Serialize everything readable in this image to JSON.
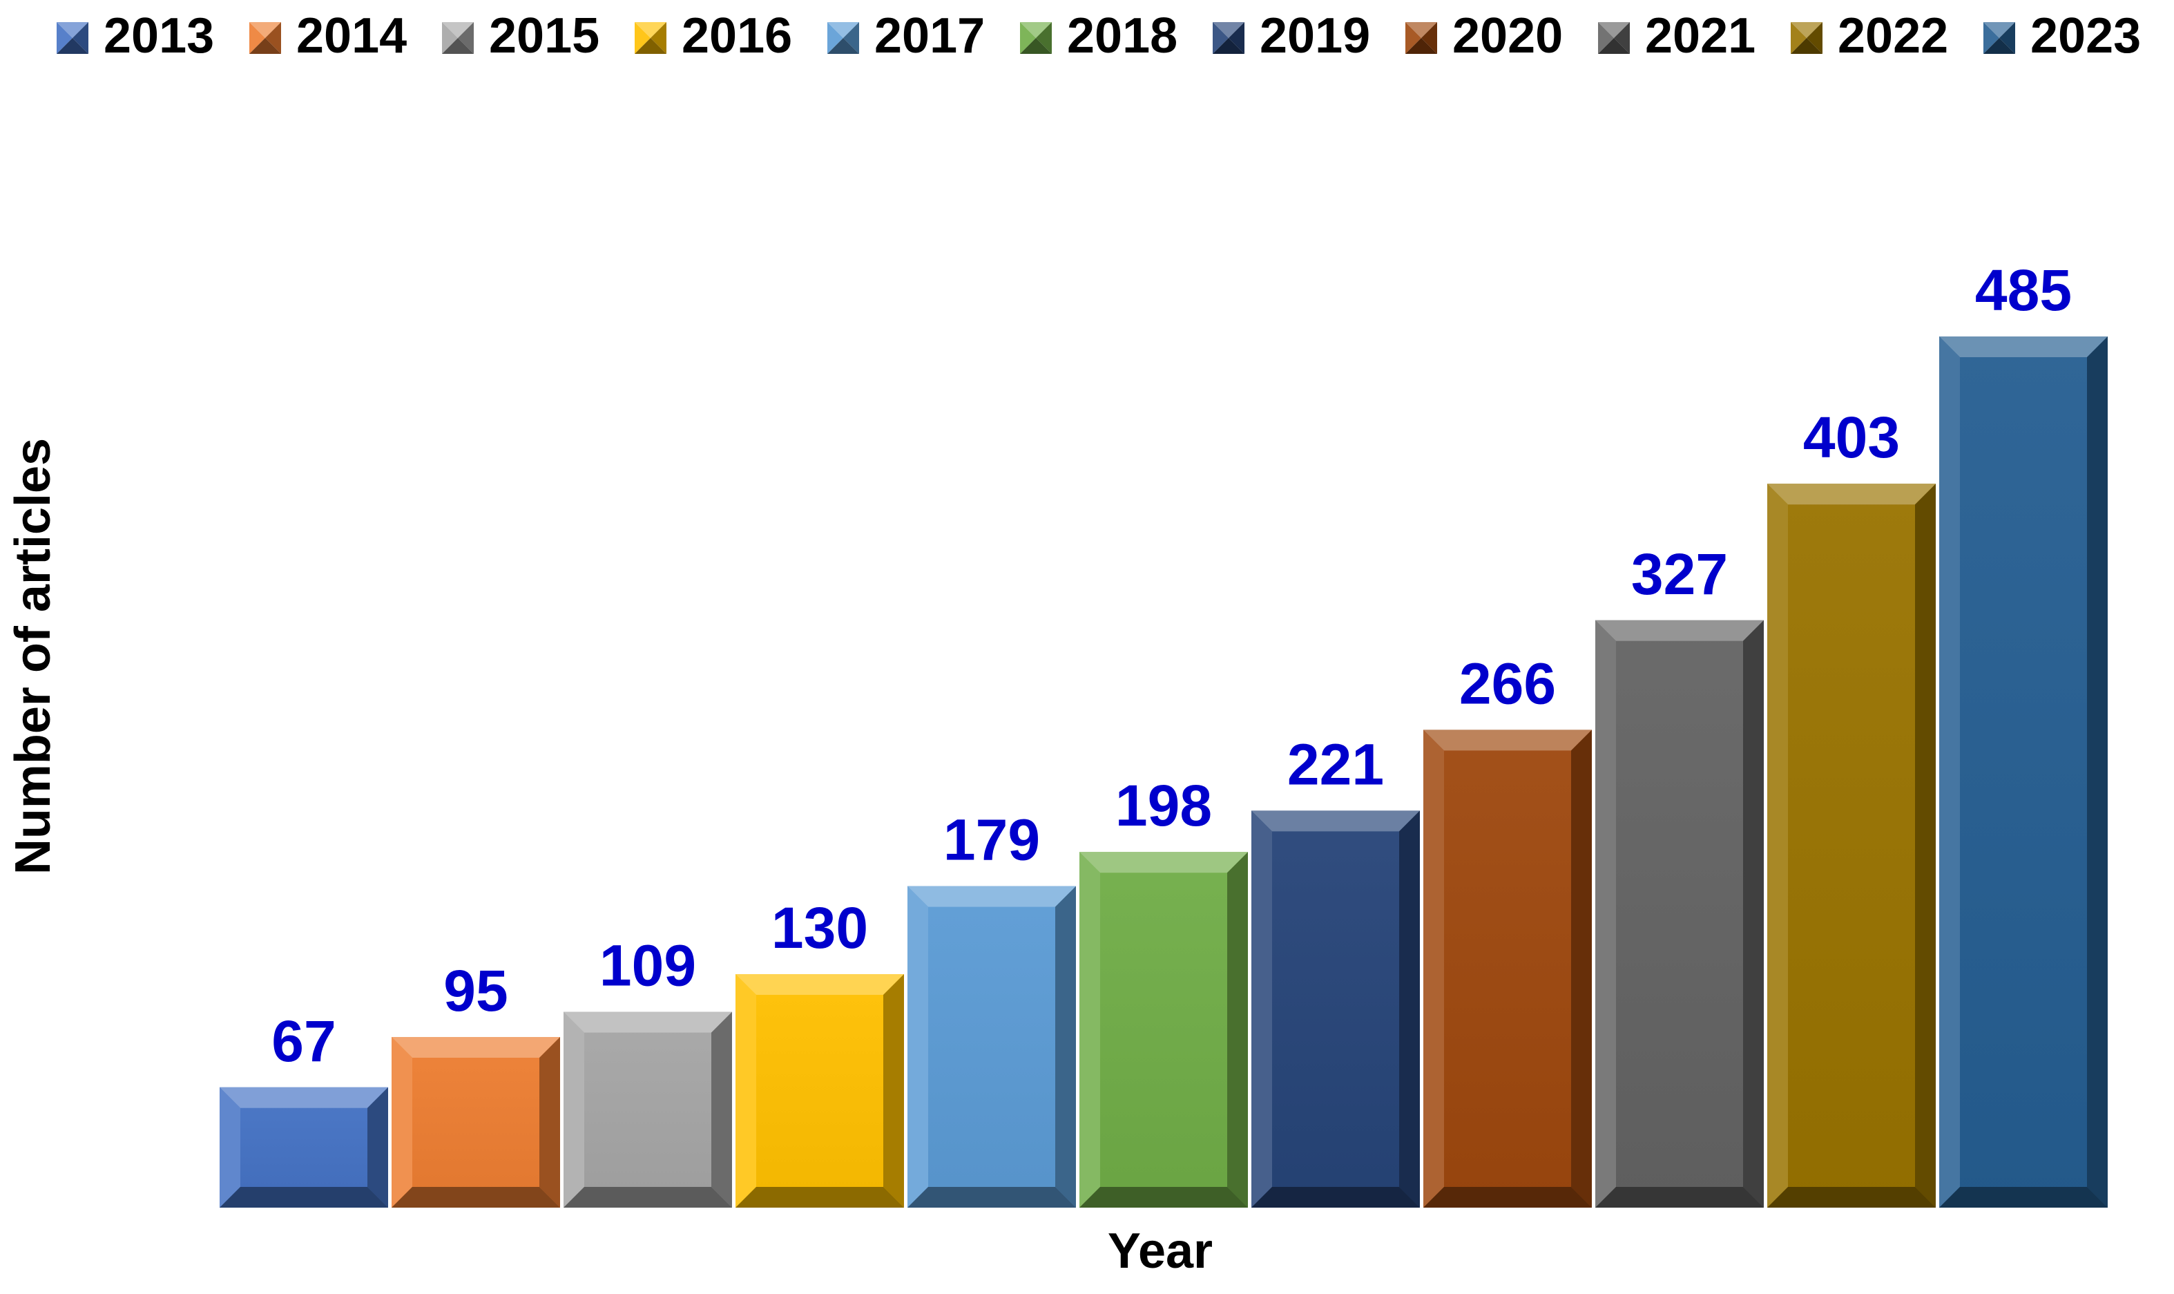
{
  "chart_data": {
    "type": "bar",
    "categories": [
      "2013",
      "2014",
      "2015",
      "2016",
      "2017",
      "2018",
      "2019",
      "2020",
      "2021",
      "2022",
      "2023"
    ],
    "values": [
      67,
      95,
      109,
      130,
      179,
      198,
      221,
      266,
      327,
      403,
      485
    ],
    "title": "",
    "xlabel": "Year",
    "ylabel": "Number of articles",
    "ylim": [
      0,
      500
    ],
    "grid": false,
    "legend_position": "top",
    "legend": [
      "2013",
      "2014",
      "2015",
      "2016",
      "2017",
      "2018",
      "2019",
      "2020",
      "2021",
      "2022",
      "2023"
    ],
    "value_label_color": "#0000CC",
    "colors": [
      "#4472C4",
      "#ED7D31",
      "#A5A5A5",
      "#FFC000",
      "#5B9BD5",
      "#70AD47",
      "#264478",
      "#9E480E",
      "#636363",
      "#997300",
      "#255E91"
    ]
  }
}
